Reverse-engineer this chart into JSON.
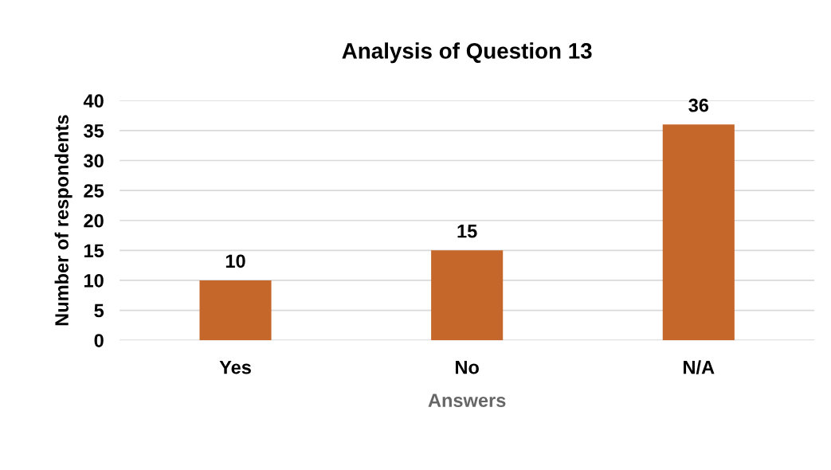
{
  "chart_data": {
    "type": "bar",
    "title": "Analysis of Question 13",
    "xlabel": "Answers",
    "ylabel": "Number of respondents",
    "categories": [
      "Yes",
      "No",
      "N/A"
    ],
    "values": [
      10,
      15,
      36
    ],
    "color": "#c5672a",
    "ylim": [
      0,
      40
    ],
    "yticks": [
      0,
      5,
      10,
      15,
      20,
      25,
      30,
      35,
      40
    ],
    "grid": "y",
    "data_labels": true
  }
}
